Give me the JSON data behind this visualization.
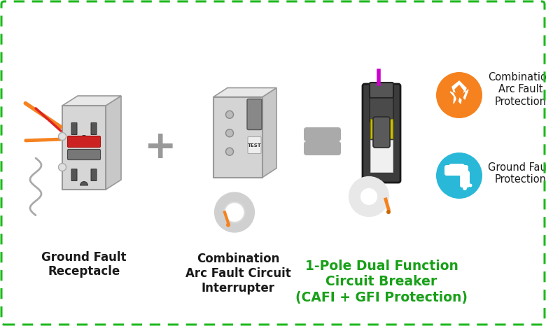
{
  "bg_color": "#ffffff",
  "border_color": "#1db81d",
  "dark_text": "#1a1a1a",
  "green_text": "#18a018",
  "orange_circle": "#f5821f",
  "blue_circle": "#29b8d8",
  "gray_light": "#e0e0e0",
  "gray_mid": "#b8b8b8",
  "gray_dark": "#888888",
  "gray_darker": "#555555",
  "outlet_dark": "#666666",
  "wire_orange": "#f5821f",
  "wire_red": "#dd2222",
  "wire_gray": "#aaaaaa",
  "btn_red": "#cc2222",
  "btn_gray": "#777777",
  "labels": {
    "gfr": "Ground Fault\nReceptacle",
    "cafci": "Combination\nArc Fault Circuit\nInterrupter",
    "breaker": "1-Pole Dual Function\nCircuit Breaker\n(CAFI + GFI Protection)",
    "arc": "Combination\nArc Fault\nProtection",
    "gf": "Ground Fault\nProtection"
  },
  "fig_width": 7.8,
  "fig_height": 4.66,
  "dpi": 100
}
